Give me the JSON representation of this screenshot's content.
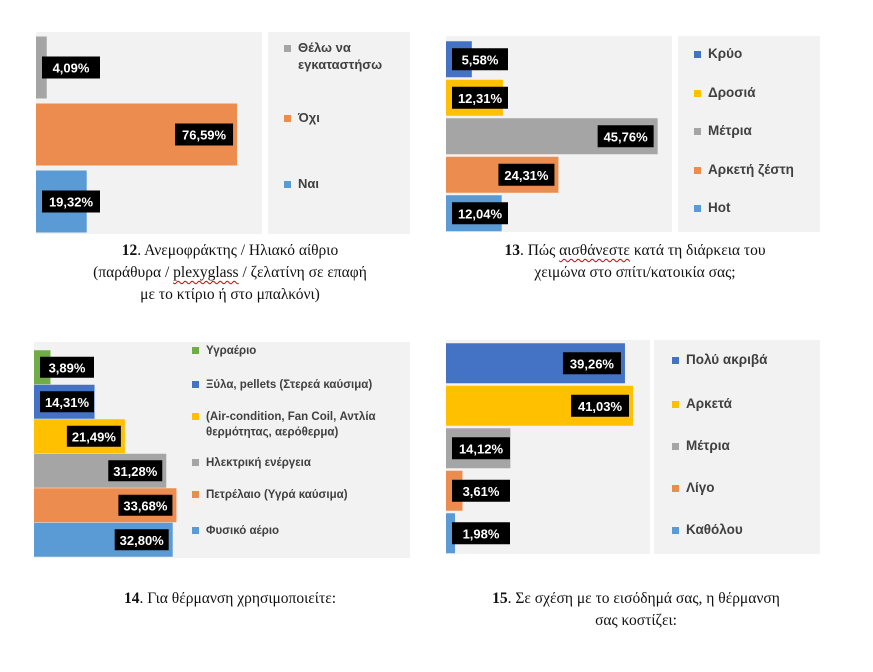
{
  "colors": {
    "blue": "#5b9bd5",
    "orange": "#ed8c4f",
    "gray": "#a5a5a5",
    "yellow": "#ffc000",
    "darkblue": "#4472c4",
    "green": "#70ad47"
  },
  "captions": {
    "c12": {
      "num": "12",
      "text": ". Ανεμοφράκτης / Ηλιακό αίθριο",
      "line2_a": "(παράθυρα / ",
      "line2_b": "plexyglass",
      "line2_c": " / ζελατίνη σε επαφή",
      "line3": "με το κτίριο ή στο μπαλκόνι)"
    },
    "c13": {
      "num": "13",
      "text_a": ". Πώς ",
      "text_b": "αισθάνεστε",
      "text_c": " κατά τη διάρκεια του",
      "line2": "χειμώνα στο σπίτι/κατοικία σας;"
    },
    "c14": {
      "num": "14",
      "text": ". Για θέρμανση χρησιμοποιείτε:"
    },
    "c15": {
      "num": "15",
      "text": ". Σε σχέση με το εισόδημά σας, η θέρμανση",
      "line2": "σας κοστίζει:"
    }
  },
  "chart_data": [
    {
      "type": "bar",
      "orientation": "horizontal",
      "id": "q12",
      "categories": [
        "Θέλω να εγκαταστήσω",
        "Όχι",
        "Ναι"
      ],
      "values": [
        4.09,
        76.59,
        19.32
      ],
      "labels": [
        "4,09%",
        "76,59%",
        "19,32%"
      ],
      "colors": [
        "#a5a5a5",
        "#ed8c4f",
        "#5b9bd5"
      ],
      "legend": [
        {
          "label": [
            "Θέλω να",
            "εγκαταστήσω"
          ],
          "color": "#a5a5a5"
        },
        {
          "label": [
            "Όχι"
          ],
          "color": "#ed8c4f"
        },
        {
          "label": [
            "Ναι"
          ],
          "color": "#5b9bd5"
        }
      ],
      "legend_position": "right",
      "xlim": [
        0,
        80
      ]
    },
    {
      "type": "bar",
      "orientation": "horizontal",
      "id": "q13",
      "categories": [
        "Κρύο",
        "Δροσιά",
        "Μέτρια",
        "Αρκετή ζέστη",
        "Hot"
      ],
      "values": [
        5.58,
        12.31,
        45.76,
        24.31,
        12.04
      ],
      "labels": [
        "5,58%",
        "12,31%",
        "45,76%",
        "24,31%",
        "12,04%"
      ],
      "colors": [
        "#4472c4",
        "#ffc000",
        "#a5a5a5",
        "#ed8c4f",
        "#5b9bd5"
      ],
      "legend": [
        {
          "label": [
            "Κρύο"
          ],
          "color": "#4472c4"
        },
        {
          "label": [
            "Δροσιά"
          ],
          "color": "#ffc000"
        },
        {
          "label": [
            "Μέτρια"
          ],
          "color": "#a5a5a5"
        },
        {
          "label": [
            "Αρκετή ζέστη"
          ],
          "color": "#ed8c4f"
        },
        {
          "label": [
            "Hot"
          ],
          "color": "#5b9bd5"
        }
      ],
      "legend_position": "right",
      "xlim": [
        0,
        48
      ]
    },
    {
      "type": "bar",
      "orientation": "horizontal",
      "id": "q14",
      "categories": [
        "Υγραέριο",
        "Ξύλα, pellets (Στερεά καύσιμα)",
        "(Air-condition, Fan Coil, Αντλία θερμότητας, αερόθερμα)",
        "Ηλεκτρική ενέργεια",
        "Πετρέλαιο (Υγρά καύσιμα)",
        "Φυσικό αέριο"
      ],
      "values": [
        3.89,
        14.31,
        21.49,
        31.28,
        33.68,
        32.8
      ],
      "labels": [
        "3,89%",
        "14,31%",
        "21,49%",
        "31,28%",
        "33,68%",
        "32,80%"
      ],
      "colors": [
        "#70ad47",
        "#4472c4",
        "#ffc000",
        "#a5a5a5",
        "#ed8c4f",
        "#5b9bd5"
      ],
      "legend": [
        {
          "label": [
            "Υγραέριο"
          ],
          "color": "#70ad47"
        },
        {
          "label": [
            "Ξύλα, pellets (Στερεά καύσιμα)"
          ],
          "color": "#4472c4"
        },
        {
          "label": [
            "(Air-condition, Fan Coil, Αντλία",
            "θερμότητας, αερόθερμα)"
          ],
          "color": "#ffc000"
        },
        {
          "label": [
            "Ηλεκτρική ενέργεια"
          ],
          "color": "#a5a5a5"
        },
        {
          "label": [
            "Πετρέλαιο (Υγρά καύσιμα)"
          ],
          "color": "#ed8c4f"
        },
        {
          "label": [
            "Φυσικό αέριο"
          ],
          "color": "#5b9bd5"
        }
      ],
      "legend_position": "right",
      "xlim": [
        0,
        35
      ]
    },
    {
      "type": "bar",
      "orientation": "horizontal",
      "id": "q15",
      "categories": [
        "Πολύ ακριβά",
        "Αρκετά",
        "Μέτρια",
        "Λίγο",
        "Καθόλου"
      ],
      "values": [
        39.26,
        41.03,
        14.12,
        3.61,
        1.98
      ],
      "labels": [
        "39,26%",
        "41,03%",
        "14,12%",
        "3,61%",
        "1,98%"
      ],
      "colors": [
        "#4472c4",
        "#ffc000",
        "#a5a5a5",
        "#ed8c4f",
        "#5b9bd5"
      ],
      "legend": [
        {
          "label": [
            "Πολύ ακριβά"
          ],
          "color": "#4472c4"
        },
        {
          "label": [
            "Αρκετά"
          ],
          "color": "#ffc000"
        },
        {
          "label": [
            "Μέτρια"
          ],
          "color": "#a5a5a5"
        },
        {
          "label": [
            "Λίγο"
          ],
          "color": "#ed8c4f"
        },
        {
          "label": [
            "Καθόλου"
          ],
          "color": "#5b9bd5"
        }
      ],
      "legend_position": "right",
      "xlim": [
        0,
        43
      ]
    }
  ]
}
